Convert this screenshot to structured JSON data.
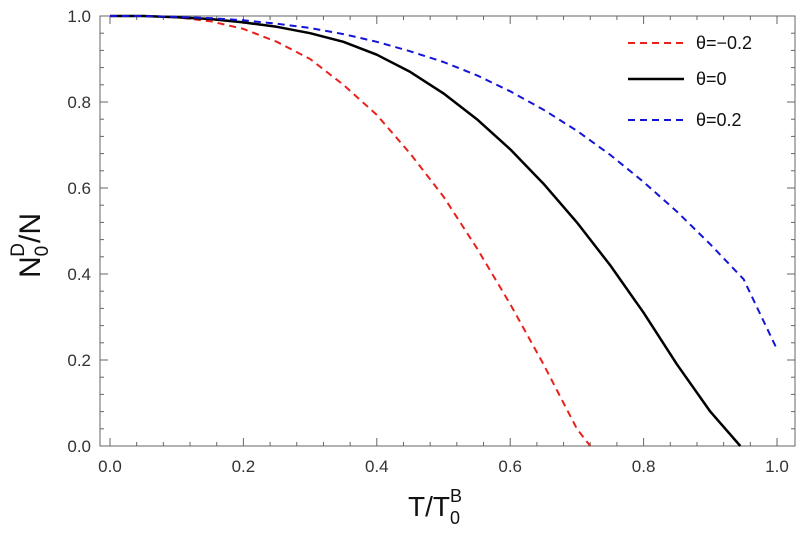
{
  "chart_data": {
    "type": "line",
    "title": "",
    "xlabel": {
      "base": "T/T",
      "sub": "0",
      "sup": "B"
    },
    "ylabel": {
      "base": "N",
      "sub": "0",
      "sup": "D",
      "suffix": "/N"
    },
    "xlim": [
      0.0,
      1.0
    ],
    "ylim": [
      0.0,
      1.0
    ],
    "x_ticks": [
      "0.0",
      "0.2",
      "0.4",
      "0.6",
      "0.8",
      "1.0"
    ],
    "y_ticks": [
      "0.0",
      "0.2",
      "0.4",
      "0.6",
      "0.8",
      "1.0"
    ],
    "grid": false,
    "legend_position": "top-right",
    "series": [
      {
        "name": "θ=−0.2",
        "color": "#e8211b",
        "style": "dashed",
        "x": [
          0.0,
          0.05,
          0.1,
          0.15,
          0.2,
          0.25,
          0.3,
          0.35,
          0.4,
          0.45,
          0.5,
          0.55,
          0.6,
          0.65,
          0.7,
          0.72
        ],
        "y": [
          1.0,
          1.0,
          0.997,
          0.988,
          0.97,
          0.94,
          0.9,
          0.84,
          0.77,
          0.68,
          0.58,
          0.46,
          0.33,
          0.19,
          0.04,
          0.0
        ]
      },
      {
        "name": "θ=0",
        "color": "#000000",
        "style": "solid",
        "x": [
          0.0,
          0.05,
          0.1,
          0.15,
          0.2,
          0.25,
          0.3,
          0.35,
          0.4,
          0.45,
          0.5,
          0.55,
          0.6,
          0.65,
          0.7,
          0.75,
          0.8,
          0.85,
          0.9,
          0.945
        ],
        "y": [
          1.0,
          1.0,
          0.997,
          0.993,
          0.985,
          0.975,
          0.96,
          0.94,
          0.91,
          0.87,
          0.82,
          0.76,
          0.69,
          0.61,
          0.52,
          0.42,
          0.31,
          0.19,
          0.08,
          0.0
        ]
      },
      {
        "name": "θ=0.2",
        "color": "#1414d6",
        "style": "dashed",
        "x": [
          0.0,
          0.05,
          0.1,
          0.15,
          0.2,
          0.25,
          0.3,
          0.35,
          0.4,
          0.45,
          0.5,
          0.55,
          0.6,
          0.65,
          0.7,
          0.75,
          0.8,
          0.85,
          0.9,
          0.95,
          1.0
        ],
        "y": [
          1.0,
          1.0,
          0.998,
          0.995,
          0.99,
          0.982,
          0.972,
          0.958,
          0.94,
          0.918,
          0.893,
          0.862,
          0.825,
          0.782,
          0.733,
          0.677,
          0.614,
          0.545,
          0.469,
          0.388,
          0.225
        ]
      }
    ]
  }
}
